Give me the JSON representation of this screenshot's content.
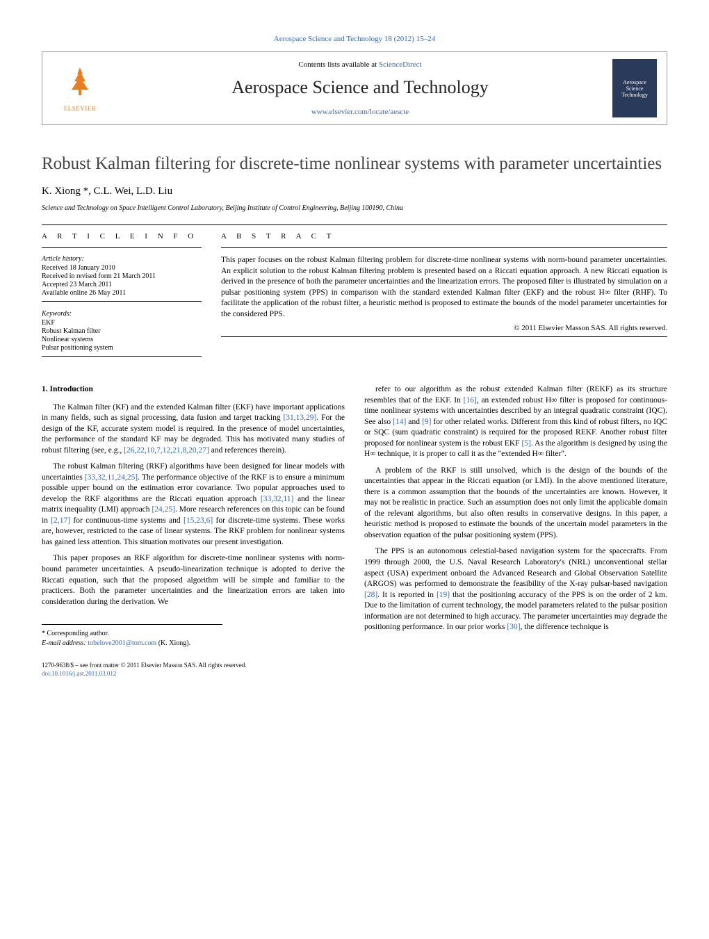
{
  "top_link": "Aerospace Science and Technology 18 (2012) 15–24",
  "header": {
    "contents_prefix": "Contents lists available at ",
    "contents_link": "ScienceDirect",
    "journal_title": "Aerospace Science and Technology",
    "locate_link": "www.elsevier.com/locate/aescte",
    "publisher": "ELSEVIER",
    "cover_text": "Aerospace Science Technology"
  },
  "title": "Robust Kalman filtering for discrete-time nonlinear systems with parameter uncertainties",
  "authors": "K. Xiong *, C.L. Wei, L.D. Liu",
  "affiliation": "Science and Technology on Space Intelligent Control Laboratory, Beijing Institute of Control Engineering, Beijing 100190, China",
  "article_info": {
    "heading": "A R T I C L E   I N F O",
    "history_label": "Article history:",
    "history": [
      "Received 18 January 2010",
      "Received in revised form 21 March 2011",
      "Accepted 23 March 2011",
      "Available online 26 May 2011"
    ],
    "keywords_label": "Keywords:",
    "keywords": [
      "EKF",
      "Robust Kalman filter",
      "Nonlinear systems",
      "Pulsar positioning system"
    ]
  },
  "abstract": {
    "heading": "A B S T R A C T",
    "text": "This paper focuses on the robust Kalman filtering problem for discrete-time nonlinear systems with norm-bound parameter uncertainties. An explicit solution to the robust Kalman filtering problem is presented based on a Riccati equation approach. A new Riccati equation is derived in the presence of both the parameter uncertainties and the linearization errors. The proposed filter is illustrated by simulation on a pulsar positioning system (PPS) in comparison with the standard extended Kalman filter (EKF) and the robust H∞ filter (RHF). To facilitate the application of the robust filter, a heuristic method is proposed to estimate the bounds of the model parameter uncertainties for the considered PPS.",
    "copyright": "© 2011 Elsevier Masson SAS. All rights reserved."
  },
  "section1_heading": "1. Introduction",
  "left_paragraphs": [
    "The Kalman filter (KF) and the extended Kalman filter (EKF) have important applications in many fields, such as signal processing, data fusion and target tracking [31,13,29]. For the design of the KF, accurate system model is required. In the presence of model uncertainties, the performance of the standard KF may be degraded. This has motivated many studies of robust filtering (see, e.g., [26,22,10,7,12,21,8,20,27] and references therein).",
    "The robust Kalman filtering (RKF) algorithms have been designed for linear models with uncertainties [33,32,11,24,25]. The performance objective of the RKF is to ensure a minimum possible upper bound on the estimation error covariance. Two popular approaches used to develop the RKF algorithms are the Riccati equation approach [33,32,11] and the linear matrix inequality (LMI) approach [24,25]. More research references on this topic can be found in [2,17] for continuous-time systems and [15,23,6] for discrete-time systems. These works are, however, restricted to the case of linear systems. The RKF problem for nonlinear systems has gained less attention. This situation motivates our present investigation.",
    "This paper proposes an RKF algorithm for discrete-time nonlinear systems with norm-bound parameter uncertainties. A pseudo-linearization technique is adopted to derive the Riccati equation, such that the proposed algorithm will be simple and familiar to the practicers. Both the parameter uncertainties and the linearization errors are taken into consideration during the derivation. We"
  ],
  "right_paragraphs": [
    "refer to our algorithm as the robust extended Kalman filter (REKF) as its structure resembles that of the EKF. In [16], an extended robust H∞ filter is proposed for continuous-time nonlinear systems with uncertainties described by an integral quadratic constraint (IQC). See also [14] and [9] for other related works. Different from this kind of robust filters, no IQC or SQC (sum quadratic constraint) is required for the proposed REKF. Another robust filter proposed for nonlinear system is the robust EKF [5]. As the algorithm is designed by using the H∞ technique, it is proper to call it as the \"extended H∞ filter\".",
    "A problem of the RKF is still unsolved, which is the design of the bounds of the uncertainties that appear in the Riccati equation (or LMI). In the above mentioned literature, there is a common assumption that the bounds of the uncertainties are known. However, it may not be realistic in practice. Such an assumption does not only limit the applicable domain of the relevant algorithms, but also often results in conservative designs. In this paper, a heuristic method is proposed to estimate the bounds of the uncertain model parameters in the observation equation of the pulsar positioning system (PPS).",
    "The PPS is an autonomous celestial-based navigation system for the spacecrafts. From 1999 through 2000, the U.S. Naval Research Laboratory's (NRL) unconventional stellar aspect (USA) experiment onboard the Advanced Research and Global Observation Satellite (ARGOS) was performed to demonstrate the feasibility of the X-ray pulsar-based navigation [28]. It is reported in [19] that the positioning accuracy of the PPS is on the order of 2 km. Due to the limitation of current technology, the model parameters related to the pulsar position information are not determined to high accuracy. The parameter uncertainties may degrade the positioning performance. In our prior works [30], the difference technique is"
  ],
  "footer": {
    "corr": "* Corresponding author.",
    "email_label": "E-mail address: ",
    "email": "tobelove2001@tom.com",
    "email_suffix": " (K. Xiong)."
  },
  "bottom": {
    "line1": "1270-9638/$ – see front matter © 2011 Elsevier Masson SAS. All rights reserved.",
    "doi": "doi:10.1016/j.ast.2011.03.012"
  },
  "colors": {
    "link": "#3366cc",
    "publisher_orange": "#e67e22",
    "cover_bg": "#2a3a5a"
  }
}
